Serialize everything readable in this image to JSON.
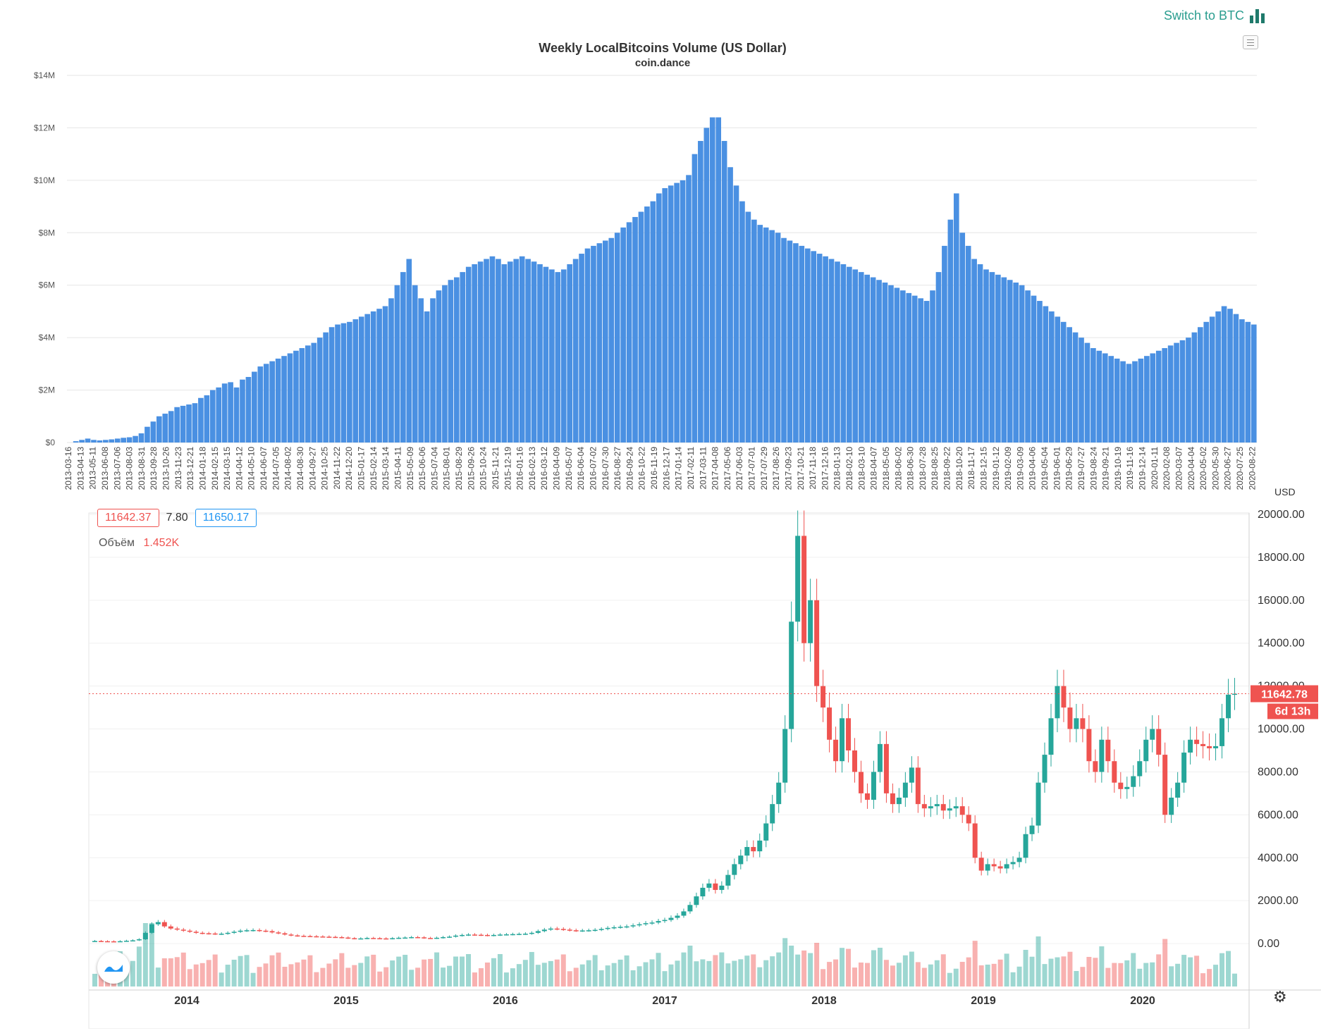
{
  "top_bar": {
    "switch_label": "Switch to BTC",
    "switch_icon": "bar-chart-icon"
  },
  "colors": {
    "bar": "#4a90e2",
    "up": "#26a69a",
    "down": "#ef5350",
    "price_line": "#ef5350"
  },
  "chart_data": [
    {
      "type": "bar",
      "title": "Weekly LocalBitcoins Volume (US Dollar)",
      "subtitle": "coin.dance",
      "xlabel": "",
      "ylabel": "",
      "ylim": [
        0,
        14000000
      ],
      "y_ticks": [
        "$0",
        "$2M",
        "$4M",
        "$6M",
        "$8M",
        "$10M",
        "$12M",
        "$14M"
      ],
      "grid": true,
      "start_date": "2013-03-16",
      "interval_weeks": 1,
      "x_tick_labels": [
        "2013-03-16",
        "2013-04-13",
        "2013-05-11",
        "2013-06-08",
        "2013-07-06",
        "2013-08-03",
        "2013-08-31",
        "2013-09-28",
        "2013-10-26",
        "2013-11-23",
        "2013-12-21",
        "2014-01-18",
        "2014-02-15",
        "2014-03-15",
        "2014-04-12",
        "2014-05-10",
        "2014-06-07",
        "2014-07-05",
        "2014-08-02",
        "2014-08-30",
        "2014-09-27",
        "2014-10-25",
        "2014-11-22",
        "2014-12-20",
        "2015-01-17",
        "2015-02-14",
        "2015-03-14",
        "2015-04-11",
        "2015-05-09",
        "2015-06-06",
        "2015-07-04",
        "2015-08-01",
        "2015-08-29",
        "2015-09-26",
        "2015-10-24",
        "2015-11-21",
        "2015-12-19",
        "2016-01-16",
        "2016-02-13",
        "2016-03-12",
        "2016-04-09",
        "2016-05-07",
        "2016-06-04",
        "2016-07-02",
        "2016-07-30",
        "2016-08-27",
        "2016-09-24",
        "2016-10-22",
        "2016-11-19",
        "2016-12-17",
        "2017-01-14",
        "2017-02-11",
        "2017-03-11",
        "2017-04-08",
        "2017-05-06",
        "2017-06-03",
        "2017-07-01",
        "2017-07-29",
        "2017-08-26",
        "2017-09-23",
        "2017-10-21",
        "2017-11-18",
        "2017-12-16",
        "2018-01-13",
        "2018-02-10",
        "2018-03-10",
        "2018-04-07",
        "2018-05-05",
        "2018-06-02",
        "2018-06-30",
        "2018-07-28",
        "2018-08-25",
        "2018-09-22",
        "2018-10-20",
        "2018-11-17",
        "2018-12-15",
        "2019-01-12",
        "2019-02-09",
        "2019-03-09",
        "2019-04-06",
        "2019-05-04",
        "2019-06-01",
        "2019-06-29",
        "2019-07-27",
        "2019-08-24",
        "2019-09-21",
        "2019-10-19",
        "2019-11-16",
        "2019-12-14",
        "2020-01-11",
        "2020-02-08",
        "2020-03-07",
        "2020-04-04",
        "2020-05-02",
        "2020-05-30",
        "2020-06-27",
        "2020-07-25",
        "2020-08-22"
      ],
      "values": [
        0,
        50000,
        100000,
        150000,
        100000,
        80000,
        100000,
        120000,
        150000,
        180000,
        200000,
        250000,
        350000,
        600000,
        800000,
        1000000,
        1100000,
        1200000,
        1350000,
        1400000,
        1450000,
        1500000,
        1700000,
        1800000,
        2000000,
        2100000,
        2250000,
        2300000,
        2100000,
        2400000,
        2500000,
        2700000,
        2900000,
        3000000,
        3100000,
        3200000,
        3300000,
        3400000,
        3500000,
        3600000,
        3700000,
        3800000,
        4000000,
        4200000,
        4400000,
        4500000,
        4550000,
        4600000,
        4700000,
        4800000,
        4900000,
        5000000,
        5100000,
        5200000,
        5500000,
        6000000,
        6500000,
        7000000,
        6000000,
        5500000,
        5000000,
        5500000,
        5800000,
        6000000,
        6200000,
        6300000,
        6500000,
        6700000,
        6800000,
        6900000,
        7000000,
        7100000,
        7000000,
        6800000,
        6900000,
        7000000,
        7100000,
        7000000,
        6900000,
        6800000,
        6700000,
        6600000,
        6500000,
        6600000,
        6800000,
        7000000,
        7200000,
        7400000,
        7500000,
        7600000,
        7700000,
        7800000,
        8000000,
        8200000,
        8400000,
        8600000,
        8800000,
        9000000,
        9200000,
        9500000,
        9700000,
        9800000,
        9900000,
        10000000,
        10200000,
        11000000,
        11500000,
        12000000,
        12400000,
        12400000,
        11500000,
        10500000,
        9800000,
        9200000,
        8800000,
        8500000,
        8300000,
        8200000,
        8100000,
        8000000,
        7800000,
        7700000,
        7600000,
        7500000,
        7400000,
        7300000,
        7200000,
        7100000,
        7000000,
        6900000,
        6800000,
        6700000,
        6600000,
        6500000,
        6400000,
        6300000,
        6200000,
        6100000,
        6000000,
        5900000,
        5800000,
        5700000,
        5600000,
        5500000,
        5400000,
        5800000,
        6500000,
        7500000,
        8500000,
        9500000,
        8000000,
        7500000,
        7000000,
        6800000,
        6600000,
        6500000,
        6400000,
        6300000,
        6200000,
        6100000,
        6000000,
        5800000,
        5600000,
        5400000,
        5200000,
        5000000,
        4800000,
        4600000,
        4400000,
        4200000,
        4000000,
        3800000,
        3600000,
        3500000,
        3400000,
        3300000,
        3200000,
        3100000,
        3000000,
        3100000,
        3200000,
        3300000,
        3400000,
        3500000,
        3600000,
        3700000,
        3800000,
        3900000,
        4000000,
        4200000,
        4400000,
        4600000,
        4800000,
        5000000,
        5200000,
        5100000,
        4900000,
        4700000,
        4600000,
        4500000
      ]
    },
    {
      "type": "candlestick",
      "title": "",
      "x_tick_labels": [
        "2014",
        "2015",
        "2016",
        "2017",
        "2018",
        "2019",
        "2020"
      ],
      "x_start": "2013-06",
      "x_end": "2020-09",
      "ylim": [
        -2000,
        20000
      ],
      "y_ticks": [
        "0.00",
        "2000.00",
        "4000.00",
        "6000.00",
        "8000.00",
        "10000.00",
        "12000.00",
        "14000.00",
        "16000.00",
        "18000.00",
        "20000.00"
      ],
      "currency_label": "USD",
      "legend": {
        "open": "11642.37",
        "change": "7.80",
        "close": "11650.17",
        "volume_label": "Объём",
        "volume_value": "1.452K"
      },
      "last_price_label": "11642.78",
      "last_price_value": 11642.78,
      "countdown_label": "6d 13h",
      "closes": [
        120,
        110,
        105,
        100,
        110,
        130,
        150,
        200,
        500,
        900,
        1000,
        800,
        700,
        650,
        600,
        550,
        500,
        480,
        470,
        450,
        460,
        500,
        550,
        600,
        620,
        630,
        600,
        580,
        520,
        480,
        420,
        380,
        360,
        350,
        340,
        330,
        320,
        310,
        300,
        280,
        250,
        230,
        240,
        260,
        250,
        240,
        230,
        250,
        270,
        280,
        300,
        290,
        260,
        250,
        270,
        300,
        320,
        370,
        400,
        420,
        410,
        400,
        380,
        400,
        420,
        430,
        440,
        450,
        460,
        500,
        580,
        650,
        700,
        680,
        650,
        620,
        600,
        610,
        620,
        640,
        680,
        730,
        760,
        780,
        800,
        850,
        900,
        950,
        980,
        1050,
        1100,
        1200,
        1300,
        1500,
        1800,
        2200,
        2600,
        2800,
        2500,
        2700,
        3200,
        3700,
        4100,
        4500,
        4300,
        4800,
        5600,
        6500,
        7500,
        10000,
        15000,
        19000,
        14000,
        16000,
        12000,
        11000,
        9500,
        8500,
        10500,
        9000,
        8000,
        7000,
        6700,
        8000,
        9300,
        7000,
        6500,
        6800,
        7500,
        8200,
        6500,
        6300,
        6400,
        6500,
        6200,
        6300,
        6400,
        6000,
        5600,
        4000,
        3400,
        3700,
        3600,
        3500,
        3700,
        3800,
        4000,
        5100,
        5500,
        7500,
        8800,
        10500,
        12000,
        11000,
        10000,
        10500,
        10000,
        8500,
        8000,
        9500,
        8500,
        7500,
        7200,
        7300,
        7800,
        8500,
        9500,
        10000,
        8800,
        6000,
        6800,
        7500,
        8900,
        9500,
        9300,
        9200,
        9100,
        9200,
        10500,
        11600,
        11642
      ]
    }
  ]
}
